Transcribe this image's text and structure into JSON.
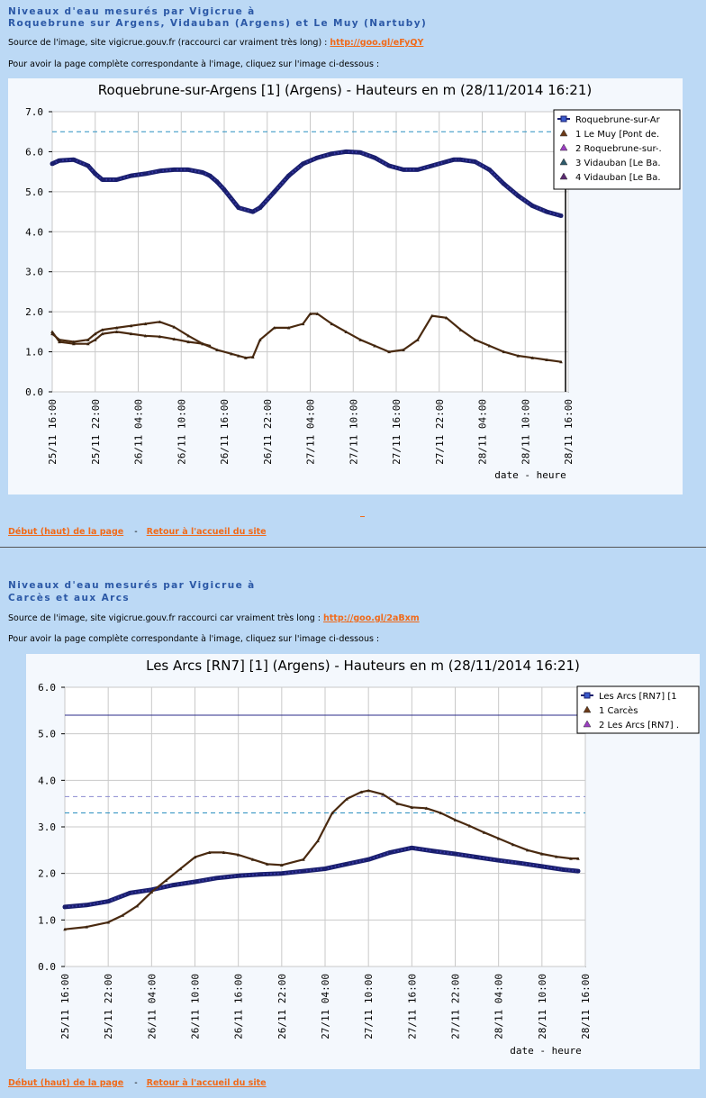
{
  "section1": {
    "title_line1": "Niveaux d'eau mesurés par Vigicrue à",
    "title_line2": "Roquebrune sur Argens, Vidauban (Argens) et Le Muy (Nartuby)",
    "source_text": "Source de l'image, site vigicrue.gouv.fr (raccourci car vraiment très long) : ",
    "source_link": "http://goo.gl/eFyQY",
    "click_text": "Pour avoir la page complète correspondante à l'image, cliquez sur l'image ci-dessous :"
  },
  "section2": {
    "title_line1": "Niveaux d'eau mesurés par Vigicrue à",
    "title_line2": "Carcès et aux Arcs",
    "source_text": "Source de l'image, site vigicrue.gouv.fr raccourci car vraiment très long : ",
    "source_link": "http://goo.gl/2aBxm",
    "click_text": "Pour avoir la page complète correspondante à l'image, cliquez sur l'image ci-dessous :"
  },
  "footer": {
    "top_link": "Début (haut) de la page",
    "separator": "-",
    "home_link": "Retour à l'accueil du site"
  },
  "colors": {
    "page_bg": "#bcd9f5",
    "title_blue": "#2b58a6",
    "link_orange": "#f06a1a",
    "series_main": "#1a1f6e",
    "series_secondary": "#4a2a10",
    "dashed_line": "#2a8fc0"
  },
  "chart_data": [
    {
      "type": "line",
      "title": "Roquebrune-sur-Argens [1] (Argens) - Hauteurs en m (28/11/2014 16:21)",
      "xlabel": "date - heure",
      "ylabel": "",
      "ylim": [
        0,
        7
      ],
      "yticks": [
        "0.0",
        "1.0",
        "2.0",
        "3.0",
        "4.0",
        "5.0",
        "6.0",
        "7.0"
      ],
      "x_ticks": [
        "25/11 16:00",
        "25/11 22:00",
        "26/11 04:00",
        "26/11 10:00",
        "26/11 16:00",
        "26/11 22:00",
        "27/11 04:00",
        "27/11 10:00",
        "27/11 16:00",
        "27/11 22:00",
        "28/11 04:00",
        "28/11 10:00",
        "28/11 16:00"
      ],
      "xlim": [
        0,
        72
      ],
      "reference_lines": [
        {
          "y": 6.5,
          "style": "dashed"
        }
      ],
      "legend": [
        "Roquebrune-sur-Ar",
        "1 Le Muy [Pont de.",
        "2 Roquebrune-sur-.",
        "3 Vidauban [Le Ba.",
        "4 Vidauban [Le Ba."
      ],
      "legend_position": "top-right",
      "series": [
        {
          "name": "Roquebrune-sur-Ar",
          "x": [
            0,
            1,
            3,
            5,
            6,
            7,
            9,
            11,
            13,
            15,
            17,
            19,
            21,
            22,
            23,
            24,
            26,
            28,
            29,
            31,
            33,
            35,
            37,
            39,
            41,
            43,
            45,
            47,
            49,
            51,
            53,
            55,
            56,
            57,
            59,
            61,
            63,
            65,
            67,
            69,
            71
          ],
          "y": [
            5.7,
            5.78,
            5.8,
            5.65,
            5.45,
            5.3,
            5.3,
            5.4,
            5.45,
            5.52,
            5.55,
            5.55,
            5.48,
            5.4,
            5.25,
            5.05,
            4.6,
            4.5,
            4.6,
            5.0,
            5.4,
            5.7,
            5.85,
            5.95,
            6.0,
            5.98,
            5.85,
            5.65,
            5.55,
            5.55,
            5.65,
            5.75,
            5.8,
            5.8,
            5.75,
            5.55,
            5.2,
            4.9,
            4.65,
            4.5,
            4.4
          ]
        },
        {
          "name": "1 Le Muy [Pont de.",
          "x": [
            0,
            1,
            3,
            5,
            6,
            7,
            9,
            11,
            13,
            15,
            17,
            19,
            21,
            22
          ],
          "y": [
            1.5,
            1.25,
            1.2,
            1.2,
            1.3,
            1.45,
            1.5,
            1.45,
            1.4,
            1.38,
            1.32,
            1.25,
            1.2,
            1.15
          ]
        },
        {
          "name": "2 Roquebrune-sur-.",
          "x": [
            0,
            1,
            3,
            5,
            6,
            7,
            9,
            11,
            13,
            15,
            17,
            19,
            21,
            23,
            25,
            26,
            27,
            28,
            29,
            31,
            33,
            35,
            36,
            37,
            39,
            41,
            43,
            45,
            47,
            49,
            51,
            53,
            55,
            57,
            59,
            61,
            63,
            65,
            67,
            69,
            71
          ],
          "y": [
            1.45,
            1.3,
            1.25,
            1.3,
            1.45,
            1.55,
            1.6,
            1.65,
            1.7,
            1.75,
            1.62,
            1.4,
            1.2,
            1.05,
            0.95,
            0.9,
            0.85,
            0.87,
            1.3,
            1.6,
            1.6,
            1.7,
            1.95,
            1.95,
            1.7,
            1.5,
            1.3,
            1.15,
            1.0,
            1.05,
            1.3,
            1.9,
            1.85,
            1.55,
            1.3,
            1.15,
            1.0,
            0.9,
            0.85,
            0.8,
            0.75
          ]
        }
      ]
    },
    {
      "type": "line",
      "title": "Les Arcs [RN7] [1] (Argens) - Hauteurs en m (28/11/2014 16:21)",
      "xlabel": "date - heure",
      "ylabel": "",
      "ylim": [
        0,
        6
      ],
      "yticks": [
        "0.0",
        "1.0",
        "2.0",
        "3.0",
        "4.0",
        "5.0",
        "6.0"
      ],
      "x_ticks": [
        "25/11 16:00",
        "25/11 22:00",
        "26/11 04:00",
        "26/11 10:00",
        "26/11 16:00",
        "26/11 22:00",
        "27/11 04:00",
        "27/11 10:00",
        "27/11 16:00",
        "27/11 22:00",
        "28/11 04:00",
        "28/11 10:00",
        "28/11 16:00"
      ],
      "xlim": [
        0,
        72
      ],
      "reference_lines": [
        {
          "y": 5.4,
          "style": "solid"
        },
        {
          "y": 3.65,
          "style": "dashed"
        },
        {
          "y": 3.3,
          "style": "dashed"
        }
      ],
      "legend": [
        "Les Arcs [RN7] [1",
        "1 Carcès",
        "2 Les Arcs [RN7] ."
      ],
      "legend_position": "top-right",
      "series": [
        {
          "name": "Les Arcs [RN7] [1",
          "x": [
            0,
            3,
            6,
            9,
            12,
            15,
            18,
            21,
            24,
            27,
            30,
            33,
            36,
            39,
            42,
            45,
            48,
            51,
            54,
            57,
            60,
            63,
            66,
            69,
            71
          ],
          "y": [
            1.28,
            1.32,
            1.4,
            1.58,
            1.65,
            1.75,
            1.82,
            1.9,
            1.95,
            1.98,
            2.0,
            2.05,
            2.1,
            2.2,
            2.3,
            2.45,
            2.55,
            2.48,
            2.42,
            2.35,
            2.28,
            2.22,
            2.15,
            2.08,
            2.05
          ]
        },
        {
          "name": "1 Carcès",
          "x": [
            0,
            3,
            6,
            8,
            10,
            12,
            14,
            16,
            18,
            20,
            22,
            24,
            26,
            28,
            30,
            33,
            35,
            37,
            39,
            41,
            42,
            44,
            46,
            48,
            50,
            52,
            54,
            56,
            58,
            60,
            62,
            64,
            66,
            68,
            70,
            71
          ],
          "y": [
            0.8,
            0.85,
            0.95,
            1.1,
            1.3,
            1.6,
            1.85,
            2.1,
            2.35,
            2.45,
            2.45,
            2.4,
            2.3,
            2.2,
            2.18,
            2.3,
            2.7,
            3.3,
            3.6,
            3.75,
            3.78,
            3.7,
            3.5,
            3.42,
            3.4,
            3.3,
            3.15,
            3.02,
            2.88,
            2.75,
            2.62,
            2.5,
            2.42,
            2.36,
            2.32,
            2.32
          ]
        }
      ]
    }
  ]
}
